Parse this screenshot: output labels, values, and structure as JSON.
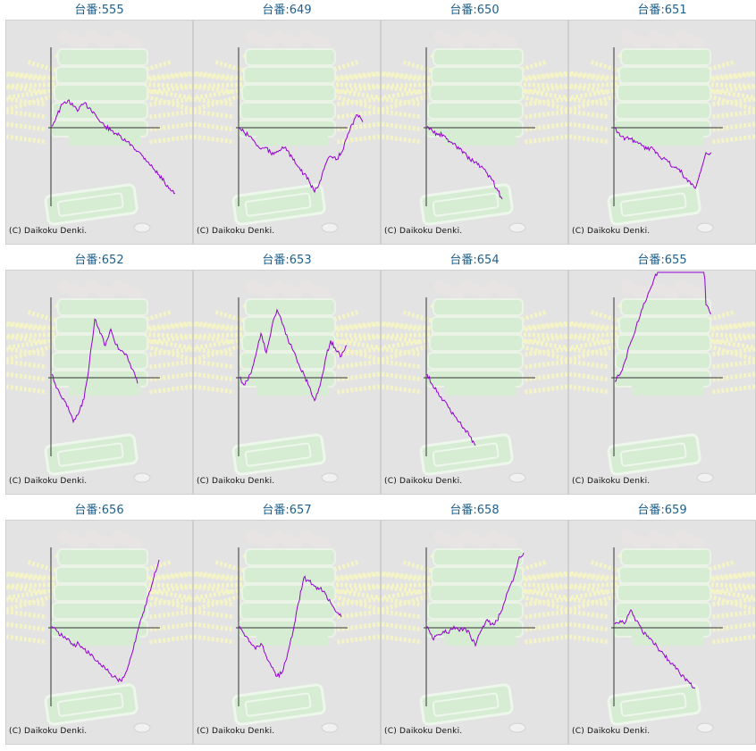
{
  "copyright": "(C) Daikoku Denki.",
  "colors": {
    "line": "#9400d3",
    "axis": "#333333",
    "title": "#1f5f8b"
  },
  "chart_data": [
    {
      "type": "line",
      "title": "台番:555",
      "y": [
        0.02,
        0.18,
        0.33,
        0.38,
        0.3,
        0.25,
        0.34,
        0.28,
        0.2,
        0.08,
        0.02,
        -0.04,
        -0.08,
        -0.15,
        -0.2,
        -0.25,
        -0.33,
        -0.4,
        -0.48,
        -0.58,
        -0.66,
        -0.76,
        -0.85,
        -0.92
      ]
    },
    {
      "type": "line",
      "title": "台番:649",
      "y": [
        0.0,
        -0.08,
        -0.12,
        -0.22,
        -0.3,
        -0.28,
        -0.38,
        -0.33,
        -0.27,
        -0.32,
        -0.45,
        -0.55,
        -0.65,
        -0.75,
        -0.9,
        -0.75,
        -0.52,
        -0.4,
        -0.45,
        -0.35,
        -0.15,
        0.05,
        0.18,
        0.08
      ]
    },
    {
      "type": "line",
      "title": "台番:650",
      "y": [
        0.02,
        -0.05,
        -0.1,
        -0.1,
        -0.2,
        -0.22,
        -0.3,
        -0.35,
        -0.45,
        -0.48,
        -0.55,
        -0.62,
        -0.72,
        -0.85,
        -1.0
      ]
    },
    {
      "type": "line",
      "title": "台番:651",
      "y": [
        0.0,
        -0.12,
        -0.15,
        -0.16,
        -0.2,
        -0.25,
        -0.3,
        -0.28,
        -0.36,
        -0.43,
        -0.48,
        -0.55,
        -0.58,
        -0.7,
        -0.75,
        -0.85,
        -0.62,
        -0.35,
        -0.35
      ]
    },
    {
      "type": "line",
      "title": "台番:652",
      "y": [
        0.05,
        -0.15,
        -0.3,
        -0.4,
        -0.62,
        -0.5,
        -0.3,
        0.2,
        0.82,
        0.62,
        0.45,
        0.68,
        0.46,
        0.38,
        0.32,
        0.12,
        -0.08
      ]
    },
    {
      "type": "line",
      "title": "台番:653",
      "y": [
        0.0,
        -0.1,
        0.05,
        0.3,
        0.62,
        0.35,
        0.7,
        0.95,
        0.75,
        0.55,
        0.38,
        0.2,
        0.05,
        -0.12,
        -0.32,
        -0.12,
        0.25,
        0.52,
        0.38,
        0.3,
        0.45
      ]
    },
    {
      "type": "line",
      "title": "台番:654",
      "y": [
        0.05,
        -0.1,
        -0.2,
        -0.32,
        -0.42,
        -0.52,
        -0.62,
        -0.72,
        -0.82,
        -0.95
      ]
    },
    {
      "type": "line",
      "title": "台番:655",
      "y": [
        -0.05,
        0.05,
        0.25,
        0.5,
        0.72,
        0.95,
        1.12,
        1.3,
        1.5,
        1.7,
        1.95,
        2.15,
        2.35,
        2.55,
        2.7,
        2.82,
        2.92,
        1.02,
        0.9
      ]
    },
    {
      "type": "line",
      "title": "台番:656",
      "y": [
        0.02,
        -0.05,
        -0.12,
        -0.15,
        -0.25,
        -0.22,
        -0.3,
        -0.36,
        -0.45,
        -0.5,
        -0.58,
        -0.65,
        -0.7,
        -0.75,
        -0.6,
        -0.35,
        -0.05,
        0.2,
        0.45,
        0.7,
        0.95
      ]
    },
    {
      "type": "line",
      "title": "台番:657",
      "y": [
        0.02,
        -0.12,
        -0.2,
        -0.3,
        -0.22,
        -0.4,
        -0.55,
        -0.68,
        -0.62,
        -0.35,
        -0.05,
        0.35,
        0.7,
        0.65,
        0.58,
        0.55,
        0.48,
        0.35,
        0.22,
        0.15
      ]
    },
    {
      "type": "line",
      "title": "台番:658",
      "y": [
        0.02,
        -0.15,
        -0.1,
        -0.05,
        -0.08,
        0.02,
        -0.05,
        0.0,
        -0.1,
        -0.25,
        -0.05,
        0.1,
        0.05,
        0.1,
        0.25,
        0.5,
        0.65,
        0.95,
        1.05
      ]
    },
    {
      "type": "line",
      "title": "台番:659",
      "y": [
        0.05,
        0.1,
        0.08,
        0.25,
        0.1,
        -0.02,
        -0.12,
        -0.18,
        -0.28,
        -0.36,
        -0.45,
        -0.53,
        -0.62,
        -0.7,
        -0.78,
        -0.85
      ]
    }
  ]
}
